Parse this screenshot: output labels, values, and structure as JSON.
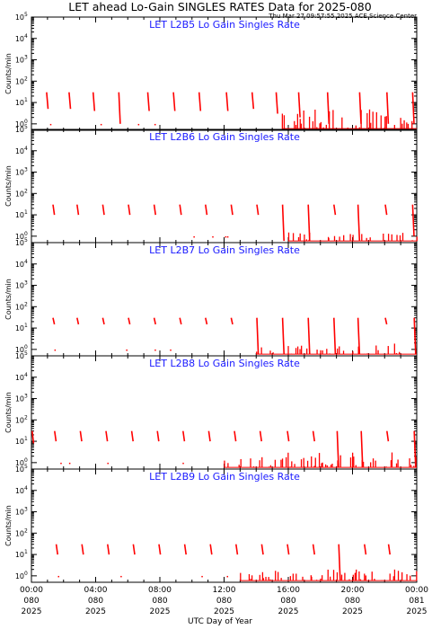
{
  "title": "LET ahead Lo-Gain SINGLES RATES Data for 2025-080",
  "timestamp": "Thu Mar 27 09:57:55 2025 ACE Science Center",
  "xlabel": "UTC Day of Year",
  "ylabel": "Counts/min",
  "colors": {
    "data": "#ff0000",
    "panel_title": "#1a1aff",
    "axes": "#000000",
    "background": "#ffffff"
  },
  "x_ticks": [
    {
      "time": "00:00",
      "doy": "080",
      "year": "2025"
    },
    {
      "time": "04:00",
      "doy": "080",
      "year": "2025"
    },
    {
      "time": "08:00",
      "doy": "080",
      "year": "2025"
    },
    {
      "time": "12:00",
      "doy": "080",
      "year": "2025"
    },
    {
      "time": "16:00",
      "doy": "080",
      "year": "2025"
    },
    {
      "time": "20:00",
      "doy": "080",
      "year": "2025"
    },
    {
      "time": "00:00",
      "doy": "081",
      "year": "2025"
    }
  ],
  "y_ticks": [
    {
      "base": "10",
      "exp": "0"
    },
    {
      "base": "10",
      "exp": "1"
    },
    {
      "base": "10",
      "exp": "2"
    },
    {
      "base": "10",
      "exp": "3"
    },
    {
      "base": "10",
      "exp": "4"
    },
    {
      "base": "10",
      "exp": "5"
    }
  ],
  "chart_data": [
    {
      "type": "line",
      "title": "LET L2B5 Lo Gain Singles Rate",
      "xlim": [
        0,
        24
      ],
      "ylim": [
        0.5,
        100000
      ],
      "yscale": "log",
      "x_unit": "hours UTC, day 080",
      "spikes": [
        {
          "t": 1.0,
          "top": 30,
          "bottom": 5
        },
        {
          "t": 2.4,
          "top": 30,
          "bottom": 5
        },
        {
          "t": 3.9,
          "top": 30,
          "bottom": 4
        },
        {
          "t": 5.5,
          "top": 30,
          "bottom": 1
        },
        {
          "t": 7.3,
          "top": 30,
          "bottom": 4
        },
        {
          "t": 8.9,
          "top": 30,
          "bottom": 4
        },
        {
          "t": 10.5,
          "top": 30,
          "bottom": 4
        },
        {
          "t": 12.2,
          "top": 30,
          "bottom": 4
        },
        {
          "t": 13.8,
          "top": 30,
          "bottom": 5
        },
        {
          "t": 15.3,
          "top": 30,
          "bottom": 3
        },
        {
          "t": 16.7,
          "top": 30,
          "bottom": 2
        },
        {
          "t": 18.5,
          "top": 30,
          "bottom": 1
        },
        {
          "t": 20.5,
          "top": 30,
          "bottom": 1
        },
        {
          "t": 22.2,
          "top": 30,
          "bottom": 1
        },
        {
          "t": 23.8,
          "top": 30,
          "bottom": 1
        }
      ],
      "noise_start": 15.6,
      "noise_max": 5
    },
    {
      "type": "line",
      "title": "LET L2B6 Lo Gain Singles Rate",
      "xlim": [
        0,
        24
      ],
      "ylim": [
        0.5,
        100000
      ],
      "yscale": "log",
      "x_unit": "hours UTC, day 080",
      "spikes": [
        {
          "t": 1.4,
          "top": 30,
          "bottom": 10
        },
        {
          "t": 2.9,
          "top": 30,
          "bottom": 10
        },
        {
          "t": 4.5,
          "top": 30,
          "bottom": 10
        },
        {
          "t": 6.1,
          "top": 30,
          "bottom": 10
        },
        {
          "t": 7.7,
          "top": 30,
          "bottom": 10
        },
        {
          "t": 9.3,
          "top": 30,
          "bottom": 10
        },
        {
          "t": 10.9,
          "top": 30,
          "bottom": 10
        },
        {
          "t": 12.5,
          "top": 30,
          "bottom": 10
        },
        {
          "t": 14.1,
          "top": 30,
          "bottom": 10
        },
        {
          "t": 15.7,
          "top": 30,
          "bottom": 0.6
        },
        {
          "t": 17.3,
          "top": 30,
          "bottom": 0.6
        },
        {
          "t": 18.9,
          "top": 30,
          "bottom": 10
        },
        {
          "t": 20.4,
          "top": 30,
          "bottom": 0.6
        },
        {
          "t": 22.1,
          "top": 30,
          "bottom": 10
        },
        {
          "t": 23.8,
          "top": 30,
          "bottom": 1
        }
      ],
      "noise_start": 16.0,
      "noise_max": 1.5
    },
    {
      "type": "line",
      "title": "LET L2B7 Lo Gain Singles Rate",
      "xlim": [
        0,
        24
      ],
      "ylim": [
        0.5,
        100000
      ],
      "yscale": "log",
      "x_unit": "hours UTC, day 080",
      "spikes": [
        {
          "t": 1.4,
          "top": 30,
          "bottom": 15
        },
        {
          "t": 2.9,
          "top": 30,
          "bottom": 15
        },
        {
          "t": 4.5,
          "top": 30,
          "bottom": 15
        },
        {
          "t": 6.1,
          "top": 30,
          "bottom": 15
        },
        {
          "t": 7.7,
          "top": 30,
          "bottom": 15
        },
        {
          "t": 9.3,
          "top": 30,
          "bottom": 15
        },
        {
          "t": 10.9,
          "top": 30,
          "bottom": 15
        },
        {
          "t": 12.5,
          "top": 30,
          "bottom": 15
        },
        {
          "t": 14.1,
          "top": 30,
          "bottom": 0.6
        },
        {
          "t": 15.7,
          "top": 30,
          "bottom": 0.6
        },
        {
          "t": 17.3,
          "top": 30,
          "bottom": 0.6
        },
        {
          "t": 18.9,
          "top": 30,
          "bottom": 0.6
        },
        {
          "t": 20.4,
          "top": 30,
          "bottom": 0.6
        },
        {
          "t": 22.1,
          "top": 30,
          "bottom": 15
        },
        {
          "t": 23.9,
          "top": 30,
          "bottom": 0.6
        }
      ],
      "noise_start": 14.0,
      "noise_max": 2
    },
    {
      "type": "line",
      "title": "LET L2B8 Lo Gain Singles Rate",
      "xlim": [
        0,
        24
      ],
      "ylim": [
        0.5,
        100000
      ],
      "yscale": "log",
      "x_unit": "hours UTC, day 080",
      "spikes": [
        {
          "t": 0.1,
          "top": 30,
          "bottom": 8
        },
        {
          "t": 1.5,
          "top": 30,
          "bottom": 10
        },
        {
          "t": 3.1,
          "top": 30,
          "bottom": 10
        },
        {
          "t": 4.7,
          "top": 30,
          "bottom": 10
        },
        {
          "t": 6.3,
          "top": 30,
          "bottom": 10
        },
        {
          "t": 7.9,
          "top": 30,
          "bottom": 10
        },
        {
          "t": 9.5,
          "top": 30,
          "bottom": 10
        },
        {
          "t": 11.1,
          "top": 30,
          "bottom": 10
        },
        {
          "t": 12.7,
          "top": 30,
          "bottom": 10
        },
        {
          "t": 14.3,
          "top": 30,
          "bottom": 10
        },
        {
          "t": 16.0,
          "top": 30,
          "bottom": 10
        },
        {
          "t": 17.6,
          "top": 30,
          "bottom": 10
        },
        {
          "t": 19.1,
          "top": 30,
          "bottom": 0.6
        },
        {
          "t": 20.6,
          "top": 30,
          "bottom": 0.6
        },
        {
          "t": 22.2,
          "top": 30,
          "bottom": 10
        },
        {
          "t": 23.9,
          "top": 30,
          "bottom": 0.6
        }
      ],
      "noise_start": 12.0,
      "noise_max": 3
    },
    {
      "type": "line",
      "title": "LET L2B9 Lo Gain Singles Rate",
      "xlim": [
        0,
        24
      ],
      "ylim": [
        0.5,
        100000
      ],
      "yscale": "log",
      "x_unit": "hours UTC, day 080",
      "spikes": [
        {
          "t": 1.6,
          "top": 30,
          "bottom": 10
        },
        {
          "t": 3.2,
          "top": 30,
          "bottom": 10
        },
        {
          "t": 4.8,
          "top": 30,
          "bottom": 10
        },
        {
          "t": 6.4,
          "top": 30,
          "bottom": 10
        },
        {
          "t": 8.0,
          "top": 30,
          "bottom": 10
        },
        {
          "t": 9.6,
          "top": 30,
          "bottom": 10
        },
        {
          "t": 11.2,
          "top": 30,
          "bottom": 10
        },
        {
          "t": 12.8,
          "top": 30,
          "bottom": 10
        },
        {
          "t": 14.4,
          "top": 30,
          "bottom": 10
        },
        {
          "t": 16.0,
          "top": 30,
          "bottom": 10
        },
        {
          "t": 17.6,
          "top": 30,
          "bottom": 10
        },
        {
          "t": 19.2,
          "top": 30,
          "bottom": 0.6
        },
        {
          "t": 20.8,
          "top": 30,
          "bottom": 10
        },
        {
          "t": 22.3,
          "top": 30,
          "bottom": 10
        }
      ],
      "noise_start": 13.0,
      "noise_max": 2
    }
  ]
}
